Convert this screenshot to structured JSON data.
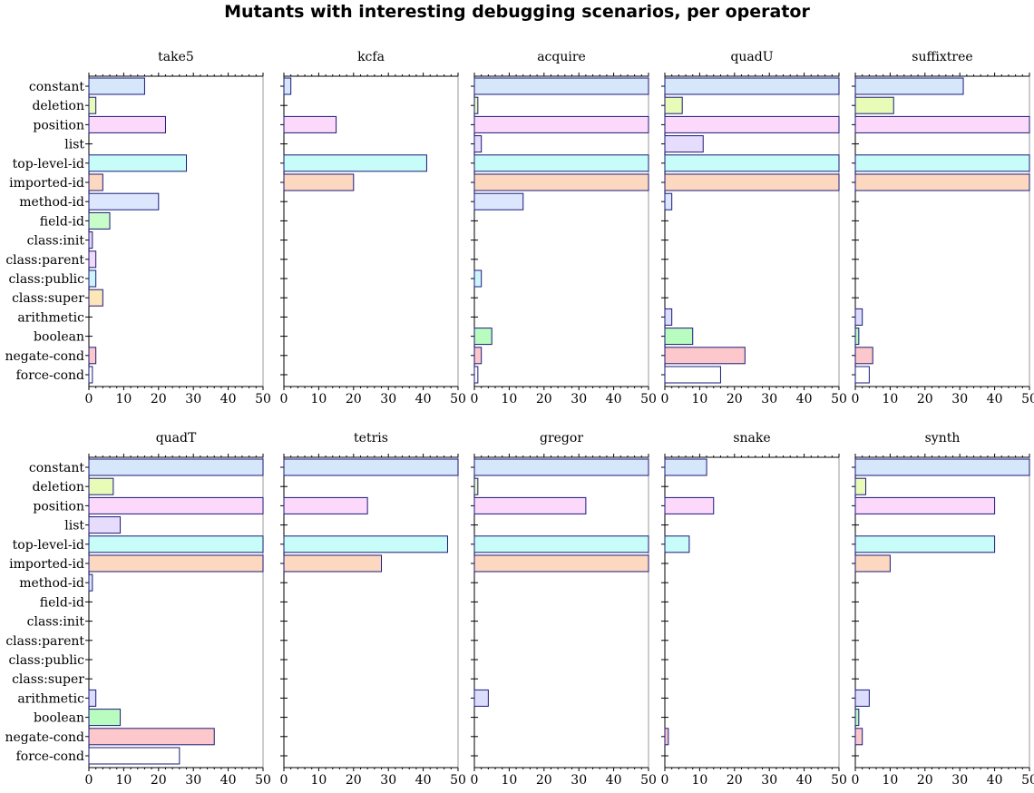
{
  "chart_data": {
    "type": "bar",
    "orientation": "horizontal",
    "title": "Mutants with interesting debugging scenarios, per operator",
    "xlim": [
      0,
      50
    ],
    "x_ticks": [
      "0",
      "10",
      "20",
      "30",
      "40",
      "50"
    ],
    "categories": [
      "constant",
      "deletion",
      "position",
      "list",
      "top-level-id",
      "imported-id",
      "method-id",
      "field-id",
      "class:init",
      "class:parent",
      "class:public",
      "class:super",
      "arithmetic",
      "boolean",
      "negate-cond",
      "force-cond"
    ],
    "colors": [
      "#d6e6fb",
      "#e8fcb8",
      "#fcd8fb",
      "#e6dcfc",
      "#c8fcf8",
      "#fdd8c0",
      "#dce6fc",
      "#c8fcc8",
      "#e6d6fb",
      "#f2daf8",
      "#ccf6fc",
      "#fde6b8",
      "#dcdcfc",
      "#b8fcc0",
      "#fcc8cc",
      "#ffffff"
    ],
    "panels": [
      {
        "name": "take5",
        "values": [
          16,
          2,
          22,
          0,
          28,
          4,
          20,
          6,
          1,
          2,
          2,
          4,
          0,
          0,
          2,
          1
        ]
      },
      {
        "name": "kcfa",
        "values": [
          2,
          0,
          15,
          0,
          41,
          20,
          0,
          0,
          0,
          0,
          0,
          0,
          0,
          0,
          0,
          0
        ]
      },
      {
        "name": "acquire",
        "values": [
          50,
          1,
          50,
          2,
          50,
          50,
          14,
          0,
          0,
          0,
          2,
          0,
          0,
          5,
          2,
          1
        ]
      },
      {
        "name": "quadU",
        "values": [
          50,
          5,
          50,
          11,
          50,
          50,
          2,
          0,
          0,
          0,
          0,
          0,
          2,
          8,
          23,
          16
        ]
      },
      {
        "name": "suffixtree",
        "values": [
          31,
          11,
          50,
          0,
          50,
          50,
          0,
          0,
          0,
          0,
          0,
          0,
          2,
          1,
          5,
          4
        ]
      },
      {
        "name": "quadT",
        "values": [
          50,
          7,
          50,
          9,
          50,
          50,
          1,
          0,
          0,
          0,
          0,
          0,
          2,
          9,
          36,
          26
        ]
      },
      {
        "name": "tetris",
        "values": [
          50,
          0,
          24,
          0,
          47,
          28,
          0,
          0,
          0,
          0,
          0,
          0,
          0,
          0,
          0,
          0
        ]
      },
      {
        "name": "gregor",
        "values": [
          50,
          1,
          32,
          0,
          50,
          50,
          0,
          0,
          0,
          0,
          0,
          0,
          4,
          0,
          0,
          0
        ]
      },
      {
        "name": "snake",
        "values": [
          12,
          0,
          14,
          0,
          7,
          0,
          0,
          0,
          0,
          0,
          0,
          0,
          0,
          0,
          1,
          0
        ]
      },
      {
        "name": "synth",
        "values": [
          50,
          3,
          40,
          0,
          40,
          10,
          0,
          0,
          0,
          0,
          0,
          0,
          4,
          1,
          2,
          0
        ]
      }
    ]
  }
}
